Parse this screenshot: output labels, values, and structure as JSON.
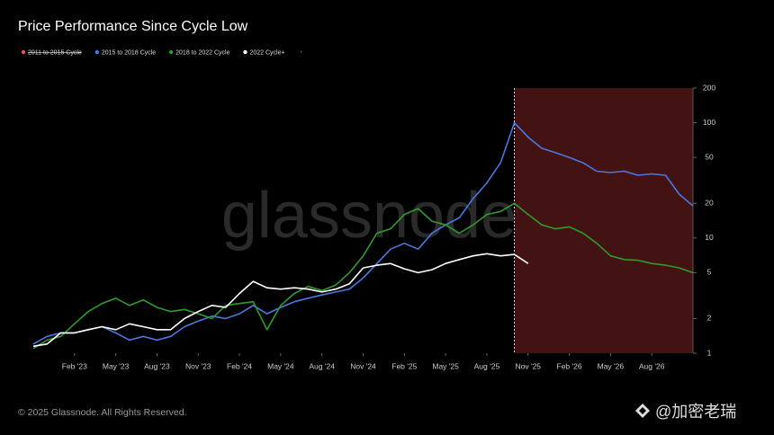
{
  "chart_data": {
    "type": "line",
    "title": "Price Performance Since Cycle Low",
    "watermark": "glassnode",
    "footer": "© 2025 Glassnode. All Rights Reserved.",
    "credit": "@加密老瑞",
    "legend_note": "-",
    "log_scale": true,
    "grid": false,
    "shaded_region": {
      "from": "2025-10",
      "to": "2026-11",
      "color": "#4a1414"
    },
    "xlim": [
      "2022-11",
      "2026-11"
    ],
    "ylim": [
      1,
      200
    ],
    "yticks": [
      1,
      2,
      5,
      10,
      20,
      50,
      100,
      200
    ],
    "xticks": [
      {
        "value": "2023-02",
        "label": "Feb '23"
      },
      {
        "value": "2023-05",
        "label": "May '23"
      },
      {
        "value": "2023-08",
        "label": "Aug '23"
      },
      {
        "value": "2023-11",
        "label": "Nov '23"
      },
      {
        "value": "2024-02",
        "label": "Feb '24"
      },
      {
        "value": "2024-05",
        "label": "May '24"
      },
      {
        "value": "2024-08",
        "label": "Aug '24"
      },
      {
        "value": "2024-11",
        "label": "Nov '24"
      },
      {
        "value": "2025-02",
        "label": "Feb '25"
      },
      {
        "value": "2025-05",
        "label": "May '25"
      },
      {
        "value": "2025-08",
        "label": "Aug '25"
      },
      {
        "value": "2025-11",
        "label": "Nov '25"
      },
      {
        "value": "2026-02",
        "label": "Feb '26"
      },
      {
        "value": "2026-05",
        "label": "May '26"
      },
      {
        "value": "2026-08",
        "label": "Aug '26"
      }
    ],
    "x": [
      "2022-11",
      "2022-12",
      "2023-01",
      "2023-02",
      "2023-03",
      "2023-04",
      "2023-05",
      "2023-06",
      "2023-07",
      "2023-08",
      "2023-09",
      "2023-10",
      "2023-11",
      "2023-12",
      "2024-01",
      "2024-02",
      "2024-03",
      "2024-04",
      "2024-05",
      "2024-06",
      "2024-07",
      "2024-08",
      "2024-09",
      "2024-10",
      "2024-11",
      "2024-12",
      "2025-01",
      "2025-02",
      "2025-03",
      "2025-04",
      "2025-05",
      "2025-06",
      "2025-07",
      "2025-08",
      "2025-09",
      "2025-10",
      "2025-11",
      "2025-12",
      "2026-01",
      "2026-02",
      "2026-03",
      "2026-04",
      "2026-05",
      "2026-06",
      "2026-07",
      "2026-08",
      "2026-09",
      "2026-10",
      "2026-11"
    ],
    "series": [
      {
        "name": "2011 to 2015 Cycle",
        "color": "#e8555a",
        "hidden": true,
        "values": [
          null,
          null,
          null,
          null,
          null,
          null,
          null,
          null,
          null,
          null,
          null,
          null,
          null,
          null,
          null,
          null,
          null,
          null,
          null,
          null,
          null,
          null,
          null,
          null,
          null,
          null,
          null,
          null,
          null,
          null,
          null,
          null,
          null,
          null,
          null,
          null,
          null,
          null,
          null,
          null,
          null,
          null,
          null,
          null,
          null,
          null,
          null,
          null,
          null
        ]
      },
      {
        "name": "2015 to 2018 Cycle",
        "color": "#4a78e0",
        "values": [
          1.2,
          1.4,
          1.5,
          1.5,
          1.6,
          1.7,
          1.5,
          1.3,
          1.4,
          1.3,
          1.4,
          1.7,
          1.9,
          2.1,
          2.0,
          2.2,
          2.6,
          2.2,
          2.5,
          2.8,
          3.0,
          3.2,
          3.4,
          3.6,
          4.5,
          6,
          8,
          9,
          8,
          11,
          13,
          15,
          22,
          30,
          45,
          100,
          75,
          60,
          55,
          50,
          45,
          38,
          37,
          38,
          35,
          36,
          35,
          24,
          19
        ]
      },
      {
        "name": "2018 to 2022 Cycle",
        "color": "#2f9a2f",
        "values": [
          1.1,
          1.3,
          1.4,
          1.8,
          2.3,
          2.7,
          3.0,
          2.6,
          2.9,
          2.5,
          2.3,
          2.4,
          2.2,
          2.0,
          2.6,
          2.7,
          2.8,
          1.6,
          2.6,
          3.3,
          3.8,
          3.5,
          3.9,
          5.0,
          7,
          11,
          12,
          16,
          18,
          14,
          13,
          11,
          13,
          16,
          17,
          20,
          16,
          13,
          12,
          12.5,
          11,
          9,
          7,
          6.5,
          6.4,
          6.0,
          5.8,
          5.5,
          5
        ]
      },
      {
        "name": "2022 Cycle+",
        "color": "#ffffff",
        "values": [
          1.15,
          1.2,
          1.5,
          1.5,
          1.6,
          1.7,
          1.6,
          1.8,
          1.7,
          1.6,
          1.6,
          2.0,
          2.3,
          2.6,
          2.5,
          3.3,
          4.2,
          3.7,
          3.6,
          3.7,
          3.6,
          3.4,
          3.6,
          4.0,
          5.5,
          5.8,
          6.0,
          5.4,
          5.0,
          5.3,
          6.0,
          6.5,
          7.0,
          7.3,
          7.0,
          7.2,
          6.0,
          null,
          null,
          null,
          null,
          null,
          null,
          null,
          null,
          null,
          null,
          null,
          null
        ]
      }
    ]
  }
}
